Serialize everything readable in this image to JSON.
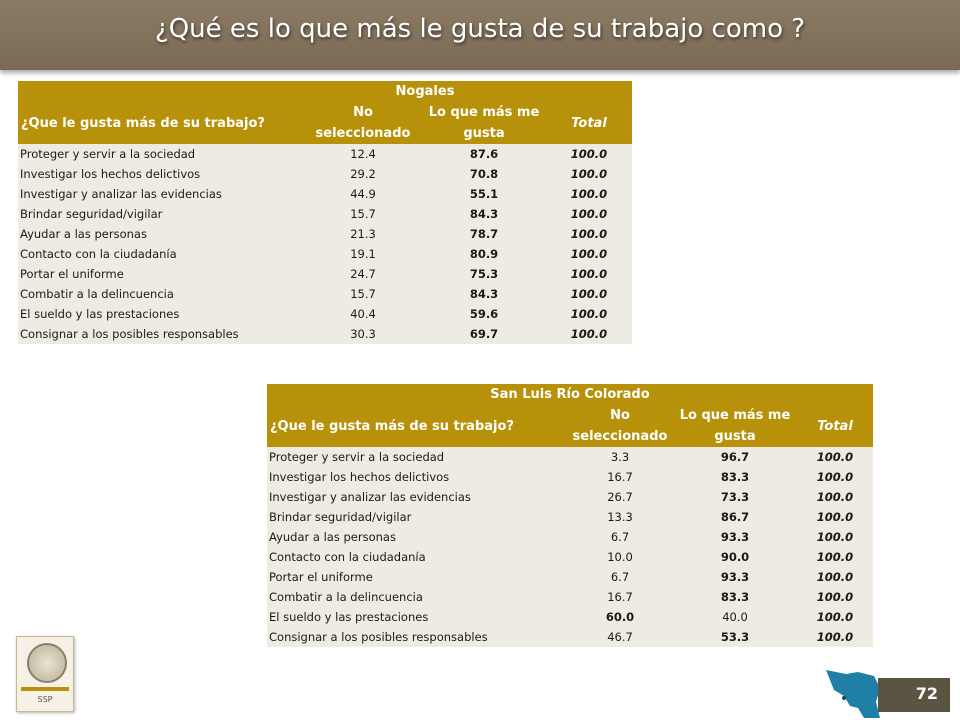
{
  "title": "¿Qué es lo que más le gusta de su trabajo como ?",
  "page_number": "72",
  "logo_label": "SSP",
  "columns": {
    "question": "¿Que le gusta más de su trabajo?",
    "no_sel": "No seleccionado",
    "most": "Lo que más me gusta",
    "total": "Total"
  },
  "tables": [
    {
      "city": "Nogales",
      "rows": [
        {
          "label": "Proteger y servir a la sociedad",
          "no_sel": "12.4",
          "most": "87.6",
          "total": "100.0",
          "bold": "most"
        },
        {
          "label": "Investigar los hechos delictivos",
          "no_sel": "29.2",
          "most": "70.8",
          "total": "100.0",
          "bold": "most"
        },
        {
          "label": "Investigar y analizar las evidencias",
          "no_sel": "44.9",
          "most": "55.1",
          "total": "100.0",
          "bold": "most"
        },
        {
          "label": "Brindar seguridad/vigilar",
          "no_sel": "15.7",
          "most": "84.3",
          "total": "100.0",
          "bold": "most"
        },
        {
          "label": "Ayudar a las personas",
          "no_sel": "21.3",
          "most": "78.7",
          "total": "100.0",
          "bold": "most"
        },
        {
          "label": "Contacto con la ciudadanía",
          "no_sel": "19.1",
          "most": "80.9",
          "total": "100.0",
          "bold": "most"
        },
        {
          "label": "Portar el uniforme",
          "no_sel": "24.7",
          "most": "75.3",
          "total": "100.0",
          "bold": "most"
        },
        {
          "label": "Combatir a la delincuencia",
          "no_sel": "15.7",
          "most": "84.3",
          "total": "100.0",
          "bold": "most"
        },
        {
          "label": "El sueldo y las prestaciones",
          "no_sel": "40.4",
          "most": "59.6",
          "total": "100.0",
          "bold": "most"
        },
        {
          "label": "Consignar a los posibles responsables",
          "no_sel": "30.3",
          "most": "69.7",
          "total": "100.0",
          "bold": "most"
        }
      ]
    },
    {
      "city": "San Luis Río Colorado",
      "rows": [
        {
          "label": "Proteger y servir a la sociedad",
          "no_sel": "3.3",
          "most": "96.7",
          "total": "100.0",
          "bold": "most"
        },
        {
          "label": "Investigar los hechos delictivos",
          "no_sel": "16.7",
          "most": "83.3",
          "total": "100.0",
          "bold": "most"
        },
        {
          "label": "Investigar y analizar las evidencias",
          "no_sel": "26.7",
          "most": "73.3",
          "total": "100.0",
          "bold": "most"
        },
        {
          "label": "Brindar seguridad/vigilar",
          "no_sel": "13.3",
          "most": "86.7",
          "total": "100.0",
          "bold": "most"
        },
        {
          "label": "Ayudar a las personas",
          "no_sel": "6.7",
          "most": "93.3",
          "total": "100.0",
          "bold": "most"
        },
        {
          "label": "Contacto con la ciudadanía",
          "no_sel": "10.0",
          "most": "90.0",
          "total": "100.0",
          "bold": "most"
        },
        {
          "label": "Portar el uniforme",
          "no_sel": "6.7",
          "most": "93.3",
          "total": "100.0",
          "bold": "most"
        },
        {
          "label": "Combatir a la delincuencia",
          "no_sel": "16.7",
          "most": "83.3",
          "total": "100.0",
          "bold": "most"
        },
        {
          "label": "El sueldo y las prestaciones",
          "no_sel": "60.0",
          "most": "40.0",
          "total": "100.0",
          "bold": "no_sel"
        },
        {
          "label": "Consignar a los posibles responsables",
          "no_sel": "46.7",
          "most": "53.3",
          "total": "100.0",
          "bold": "most"
        }
      ]
    }
  ],
  "colors": {
    "title_bar": "#7f6e58",
    "header_gold": "#b8910a",
    "cell_bg": "#eeebe2",
    "map_blue": "#1f7fa6",
    "page_box": "#5b5443"
  }
}
